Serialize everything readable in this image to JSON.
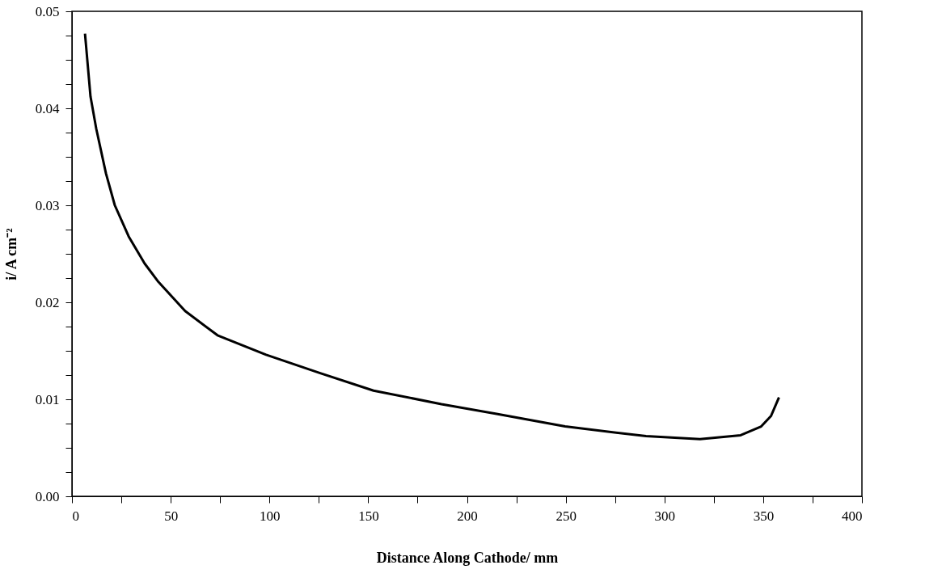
{
  "chart_data": {
    "type": "line",
    "xlabel": "Distance Along Cathode/ mm",
    "ylabel": "i/ A cm⁻²",
    "xlim": [
      0,
      400
    ],
    "ylim": [
      0,
      0.05
    ],
    "xticks": [
      0,
      {
        "value": 25,
        "label": null
      },
      50,
      {
        "value": 75,
        "label": null
      },
      100,
      {
        "value": 125,
        "label": null
      },
      150,
      {
        "value": 175,
        "label": null
      },
      200,
      {
        "value": 225,
        "label": null
      },
      250,
      {
        "value": 275,
        "label": null
      },
      300,
      {
        "value": 325,
        "label": null
      },
      350,
      {
        "value": 375,
        "label": null
      },
      400
    ],
    "yticks": [
      {
        "value": 0,
        "label": "0.00"
      },
      {
        "value": 0.0025,
        "label": null
      },
      {
        "value": 0.005,
        "label": null
      },
      {
        "value": 0.0075,
        "label": null
      },
      {
        "value": 0.01,
        "label": "0.01"
      },
      {
        "value": 0.0125,
        "label": null
      },
      {
        "value": 0.015,
        "label": null
      },
      {
        "value": 0.0175,
        "label": null
      },
      {
        "value": 0.02,
        "label": "0.02"
      },
      {
        "value": 0.0225,
        "label": null
      },
      {
        "value": 0.025,
        "label": null
      },
      {
        "value": 0.0275,
        "label": null
      },
      {
        "value": 0.03,
        "label": "0.03"
      },
      {
        "value": 0.0325,
        "label": null
      },
      {
        "value": 0.035,
        "label": null
      },
      {
        "value": 0.0375,
        "label": null
      },
      {
        "value": 0.04,
        "label": "0.04"
      },
      {
        "value": 0.0425,
        "label": null
      },
      {
        "value": 0.045,
        "label": null
      },
      {
        "value": 0.0475,
        "label": null
      },
      {
        "value": 0.05,
        "label": "0.05"
      }
    ],
    "grid": false,
    "marker": "none",
    "line_style": "solid",
    "series": [
      {
        "color": "#000000",
        "x": [
          6.6,
          9.4,
          12.3,
          17.2,
          21.7,
          28.7,
          36.8,
          43.8,
          57.3,
          73.7,
          98.3,
          125.7,
          152.7,
          187.1,
          215,
          249.7,
          290.7,
          318,
          338.6,
          349,
          354,
          358
        ],
        "values": [
          0.0477,
          0.0412,
          0.0379,
          0.0333,
          0.03,
          0.0268,
          0.024,
          0.0221,
          0.0191,
          0.0166,
          0.0146,
          0.0127,
          0.0109,
          0.0095,
          0.0085,
          0.0072,
          0.0062,
          0.0059,
          0.0063,
          0.0072,
          0.0083,
          0.0102
        ]
      }
    ]
  }
}
